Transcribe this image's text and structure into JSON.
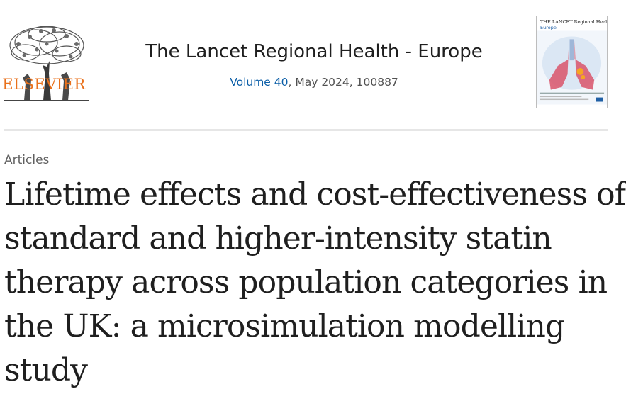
{
  "publisher": {
    "logo_text": "ELSEVIER",
    "logo_icon": "elsevier-tree-logo"
  },
  "journal": {
    "title": "The Lancet Regional Health - Europe",
    "volume_link": "Volume 40",
    "issue_rest": ", May 2024, 100887"
  },
  "cover": {
    "title": "THE LANCET Regional Health",
    "subtitle": "Europe",
    "image": "journal-cover-lungs"
  },
  "article": {
    "section": "Articles",
    "title": "Lifetime effects and cost-effectiveness of standard and higher-intensity statin therapy across population categories in the UK: a microsimulation modelling study"
  },
  "colors": {
    "publisher_orange": "#e9711c",
    "link_blue": "#0c5fa8",
    "divider": "#e6e6e6"
  }
}
